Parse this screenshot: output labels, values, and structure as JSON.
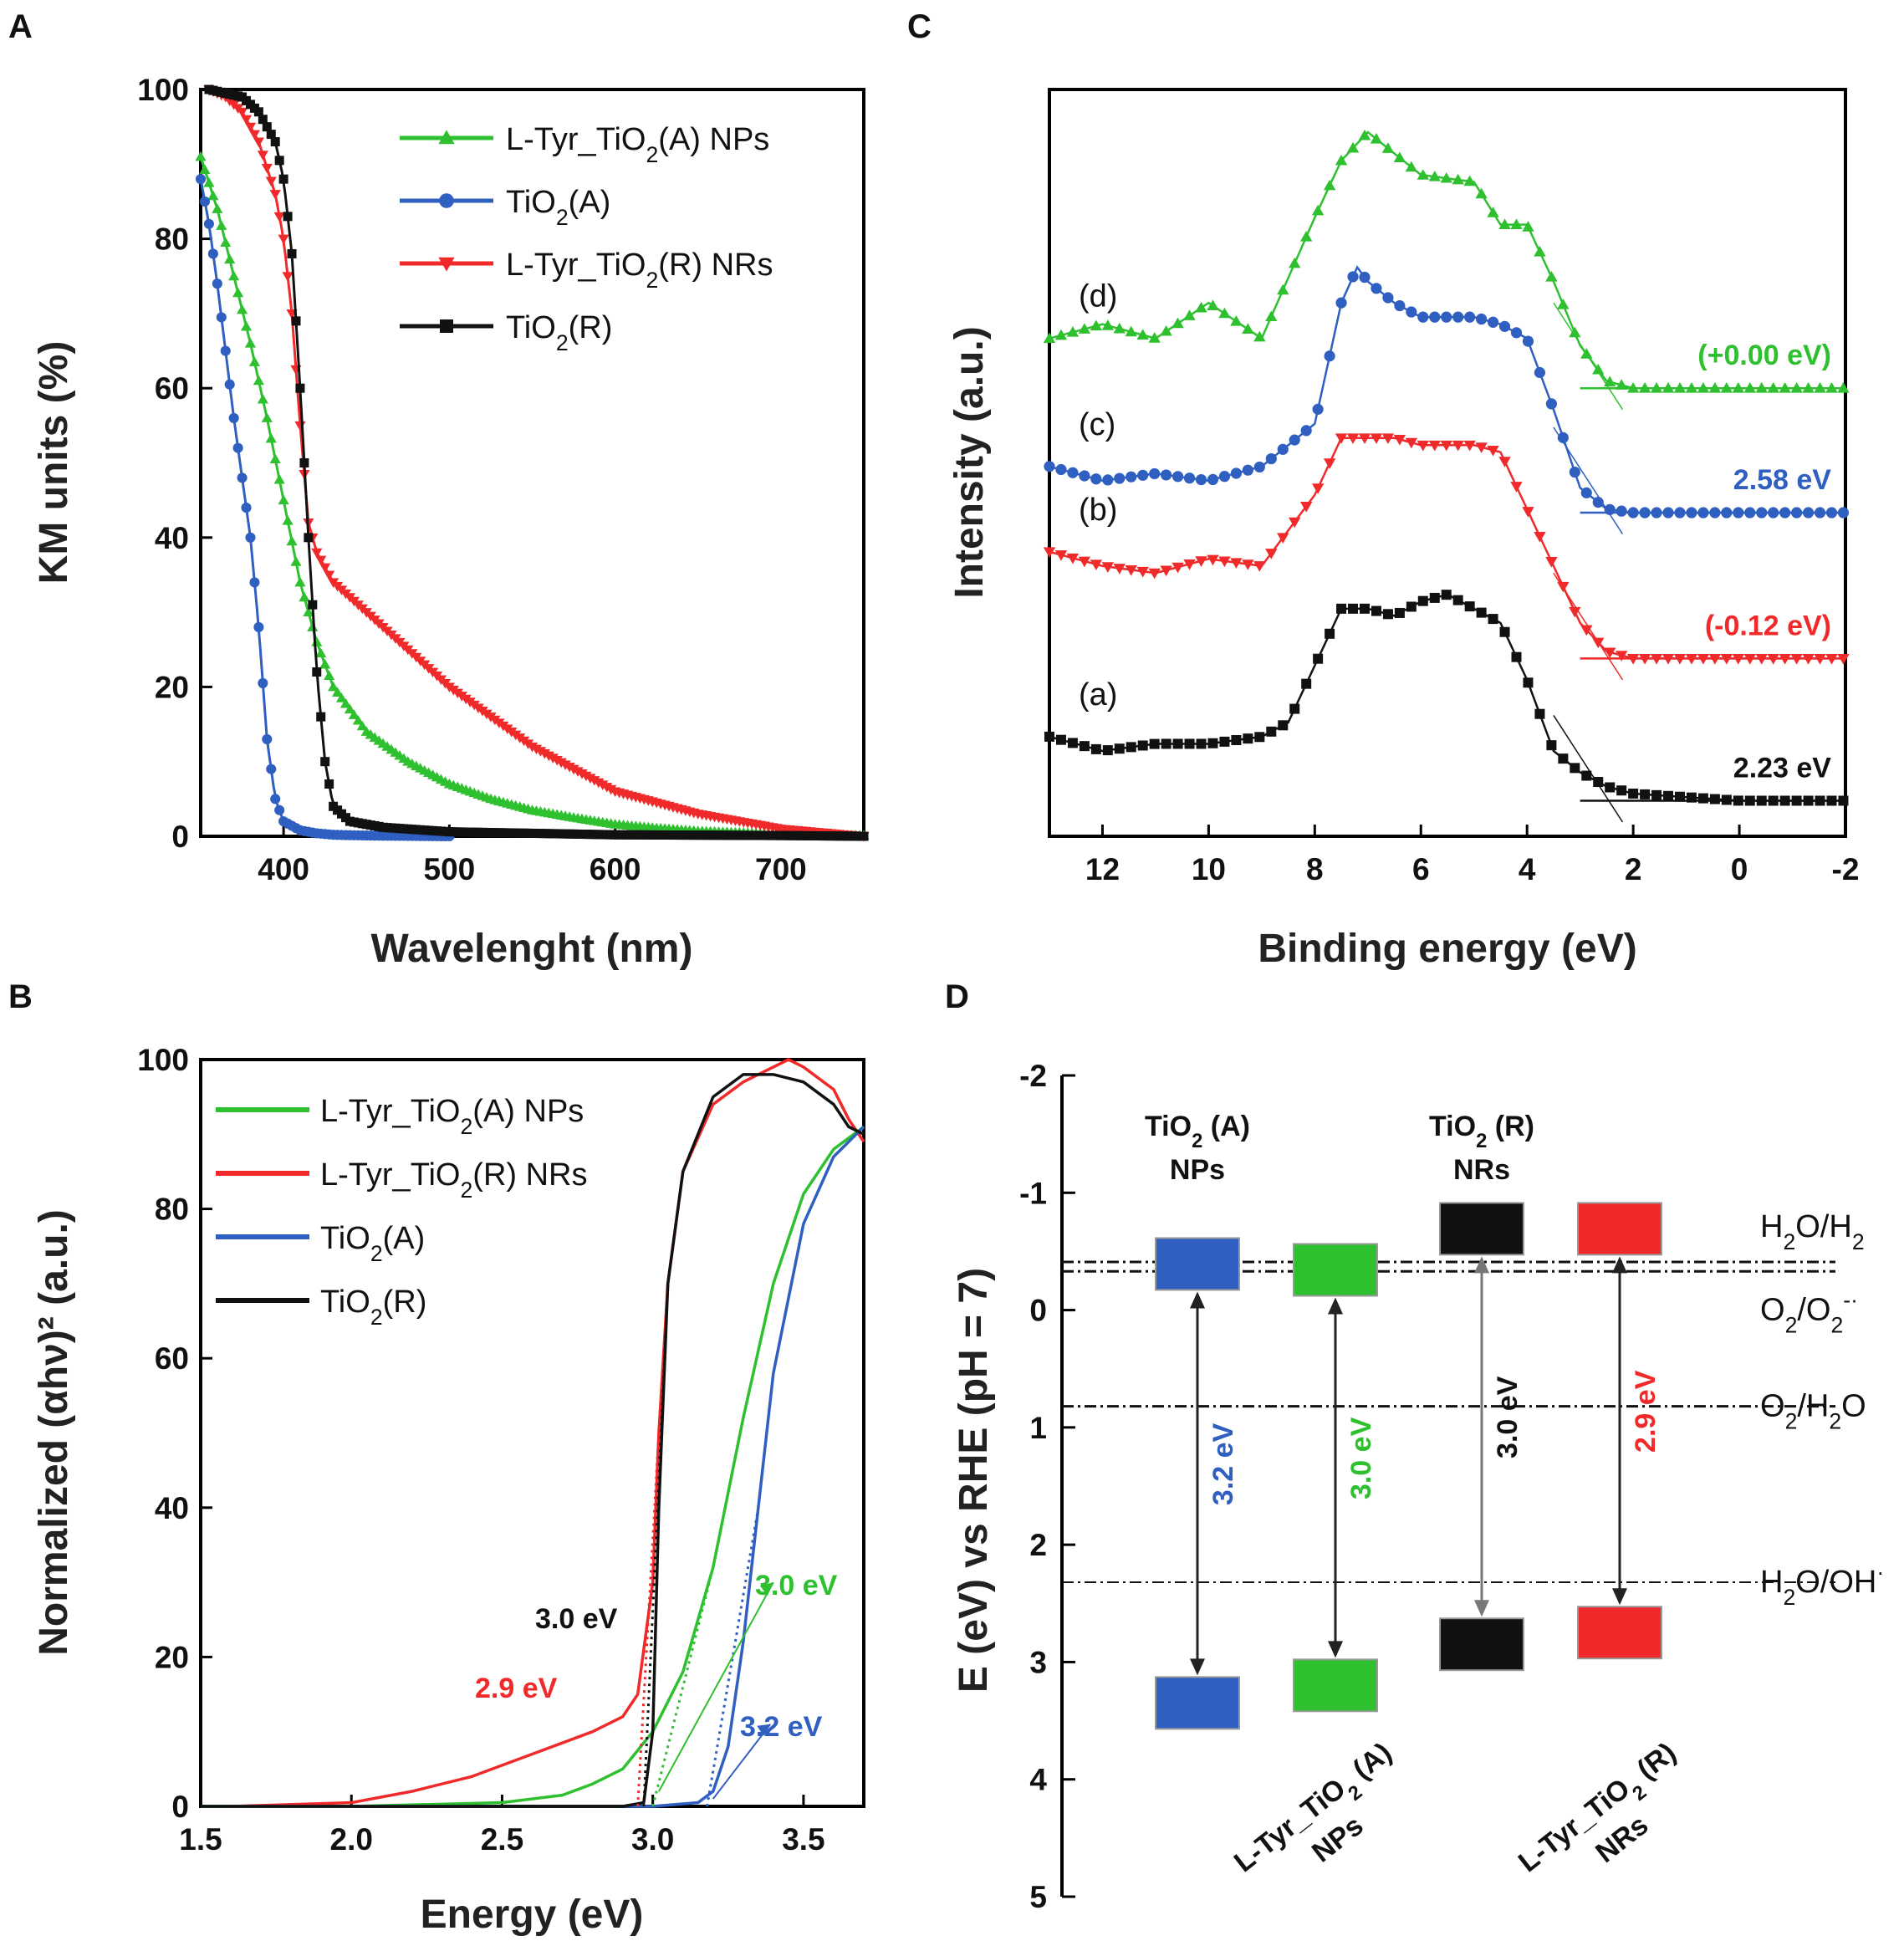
{
  "colors": {
    "green": "#2fc02f",
    "blue": "#2f5fc0",
    "red": "#f02a2a",
    "black": "#111111",
    "gray": "#777777"
  },
  "panels": {
    "A": {
      "label": "A"
    },
    "B": {
      "label": "B"
    },
    "C": {
      "label": "C"
    },
    "D": {
      "label": "D"
    }
  },
  "chart_data": [
    {
      "panel": "A",
      "type": "line",
      "xlabel": "Wavelenght (nm)",
      "ylabel": "KM units (%)",
      "xlim": [
        350,
        750
      ],
      "ylim": [
        0,
        100
      ],
      "xticks": [
        400,
        500,
        600,
        700
      ],
      "yticks": [
        0,
        20,
        40,
        60,
        80,
        100
      ],
      "legend_position": "top-right",
      "marker_hint": [
        "triangle",
        "circle",
        "triangle-down",
        "square"
      ],
      "series": [
        {
          "name": "L-Tyr_TiO2(A) NPs",
          "color": "green",
          "marker": "triangle",
          "x": [
            350,
            360,
            370,
            380,
            390,
            400,
            410,
            420,
            430,
            450,
            475,
            500,
            525,
            550,
            575,
            600,
            625,
            650,
            700,
            750
          ],
          "y": [
            91,
            84,
            75,
            66,
            56,
            45,
            34,
            26,
            20,
            14,
            10,
            7,
            5,
            3.5,
            2.5,
            1.6,
            1.1,
            0.7,
            0.3,
            0.1
          ]
        },
        {
          "name": "TiO2(A)",
          "color": "blue",
          "marker": "circle",
          "x": [
            350,
            355,
            360,
            365,
            370,
            375,
            380,
            385,
            390,
            395,
            400,
            410,
            420,
            430,
            450,
            500
          ],
          "y": [
            88,
            82,
            74,
            65,
            56,
            48,
            40,
            28,
            13,
            5,
            2,
            0.8,
            0.4,
            0.2,
            0.1,
            0
          ]
        },
        {
          "name": "L-Tyr_TiO2(R) NRs",
          "color": "red",
          "marker": "triangle-down",
          "x": [
            355,
            365,
            375,
            385,
            395,
            400,
            405,
            410,
            415,
            420,
            430,
            450,
            475,
            500,
            525,
            550,
            575,
            600,
            650,
            700,
            750
          ],
          "y": [
            100,
            99,
            97,
            93,
            86,
            80,
            70,
            55,
            42,
            38,
            34,
            30,
            25,
            20,
            16,
            12,
            9,
            6,
            3,
            1,
            0
          ]
        },
        {
          "name": "TiO2(R)",
          "color": "black",
          "marker": "square",
          "x": [
            355,
            365,
            375,
            385,
            395,
            400,
            405,
            410,
            415,
            420,
            425,
            430,
            440,
            460,
            500,
            550,
            600,
            700,
            750
          ],
          "y": [
            100,
            99.5,
            99,
            97,
            93,
            88,
            78,
            60,
            40,
            22,
            10,
            4,
            2,
            1.2,
            0.6,
            0.4,
            0.2,
            0.1,
            0
          ]
        }
      ]
    },
    {
      "panel": "B",
      "type": "line",
      "xlabel": "Energy (eV)",
      "ylabel": "Normalized (αhν)² (a.u.)",
      "xlim": [
        1.5,
        3.7
      ],
      "ylim": [
        0,
        100
      ],
      "xticks": [
        "1.5",
        "2.0",
        "2.5",
        "3.0",
        "3.5"
      ],
      "yticks": [
        0,
        20,
        40,
        60,
        80,
        100
      ],
      "legend_position": "top-left",
      "series": [
        {
          "name": "L-Tyr_TiO2(A) NPs",
          "color": "green",
          "x": [
            1.5,
            2.0,
            2.5,
            2.7,
            2.8,
            2.9,
            3.0,
            3.1,
            3.2,
            3.3,
            3.4,
            3.5,
            3.6,
            3.7
          ],
          "y": [
            0,
            0,
            0.5,
            1.5,
            3,
            5,
            10,
            18,
            32,
            52,
            70,
            82,
            88,
            91
          ]
        },
        {
          "name": "L-Tyr_TiO2(R) NRs",
          "color": "red",
          "x": [
            1.6,
            2.0,
            2.2,
            2.4,
            2.6,
            2.8,
            2.9,
            2.95,
            3.0,
            3.02,
            3.05,
            3.1,
            3.2,
            3.3,
            3.4,
            3.45,
            3.5,
            3.6,
            3.65,
            3.7
          ],
          "y": [
            0,
            0.5,
            2,
            4,
            7,
            10,
            12,
            15,
            30,
            50,
            70,
            85,
            94,
            97,
            99,
            100,
            99,
            96,
            92,
            89
          ]
        },
        {
          "name": "TiO2(A)",
          "color": "blue",
          "x": [
            1.5,
            3.0,
            3.15,
            3.2,
            3.25,
            3.3,
            3.35,
            3.4,
            3.5,
            3.6,
            3.7
          ],
          "y": [
            0,
            0,
            0.5,
            2,
            8,
            22,
            40,
            58,
            78,
            87,
            91
          ]
        },
        {
          "name": "TiO2(R)",
          "color": "black",
          "x": [
            1.5,
            2.9,
            2.97,
            3.0,
            3.02,
            3.05,
            3.1,
            3.2,
            3.3,
            3.4,
            3.5,
            3.6,
            3.65,
            3.7
          ],
          "y": [
            0,
            0,
            0.5,
            10,
            40,
            70,
            85,
            95,
            98,
            98,
            97,
            94,
            91,
            90
          ]
        }
      ],
      "annotations": [
        {
          "text": "3.0 eV",
          "color": "black"
        },
        {
          "text": "2.9 eV",
          "color": "red"
        },
        {
          "text": "3.0 eV",
          "color": "green"
        },
        {
          "text": "3.2 eV",
          "color": "blue"
        }
      ]
    },
    {
      "panel": "C",
      "type": "line",
      "xlabel": "Binding energy (eV)",
      "ylabel": "Intensity (a.u.)",
      "xlim": [
        13,
        -2
      ],
      "xticks": [
        12,
        10,
        8,
        6,
        4,
        2,
        0,
        -2
      ],
      "series": [
        {
          "name": "(d)",
          "color": "green",
          "offset_label": "(+0.00 eV)",
          "x": [
            13,
            12,
            11,
            10,
            9,
            8,
            7.5,
            7,
            6.5,
            6,
            5,
            4.5,
            4,
            3.5,
            3,
            2.5,
            2,
            1,
            0,
            -2
          ],
          "y": [
            7.0,
            7.2,
            7.0,
            7.5,
            7.0,
            8.7,
            9.5,
            9.9,
            9.6,
            9.3,
            9.2,
            8.6,
            8.6,
            7.8,
            6.9,
            6.4,
            6.3,
            6.3,
            6.3,
            6.3
          ]
        },
        {
          "name": "(c)",
          "color": "blue",
          "offset_label": "2.58 eV",
          "x": [
            13,
            12,
            11,
            10,
            9,
            8,
            7.5,
            7.2,
            7,
            6.5,
            6,
            5,
            4.5,
            4,
            3.5,
            3,
            2.5,
            2,
            1,
            0,
            -2
          ],
          "y": [
            5.2,
            5.0,
            5.1,
            5.0,
            5.2,
            5.8,
            7.5,
            8.0,
            7.8,
            7.5,
            7.3,
            7.3,
            7.2,
            7.0,
            6.0,
            4.9,
            4.6,
            4.55,
            4.55,
            4.55,
            4.55
          ]
        },
        {
          "name": "(b)",
          "color": "red",
          "offset_label": "(-0.12 eV)",
          "x": [
            13,
            12,
            11,
            10,
            9,
            8,
            7.5,
            7,
            6.5,
            6,
            5,
            4.5,
            4,
            3.5,
            3,
            2.5,
            2,
            1,
            0,
            -2
          ],
          "y": [
            4.0,
            3.8,
            3.7,
            3.9,
            3.8,
            4.8,
            5.6,
            5.6,
            5.6,
            5.5,
            5.5,
            5.4,
            4.6,
            3.8,
            3.0,
            2.6,
            2.5,
            2.5,
            2.5,
            2.5
          ]
        },
        {
          "name": "(a)",
          "color": "black",
          "offset_label": "2.23 eV",
          "x": [
            13,
            12,
            11,
            10,
            9,
            8.5,
            8,
            7.5,
            7,
            6.5,
            6,
            5.5,
            5,
            4.5,
            4,
            3.5,
            3,
            2.5,
            2,
            1,
            0,
            -2
          ],
          "y": [
            1.4,
            1.2,
            1.3,
            1.3,
            1.4,
            1.6,
            2.4,
            3.2,
            3.2,
            3.1,
            3.3,
            3.4,
            3.2,
            3.0,
            2.2,
            1.2,
            0.9,
            0.7,
            0.6,
            0.55,
            0.5,
            0.5
          ]
        }
      ]
    },
    {
      "panel": "D",
      "type": "bar",
      "ylabel": "E (eV) vs RHE (pH = 7)",
      "ylim": [
        -2,
        5
      ],
      "yticks": [
        "-2",
        "-1",
        "0",
        "1",
        "2",
        "3",
        "4",
        "5"
      ],
      "materials": [
        {
          "name_main": "TiO",
          "name_sub": "2",
          "name_rest": " (A)",
          "name_line2": "NPs",
          "label_position": "top",
          "color": "blue",
          "cb": -0.4,
          "vb": 2.8,
          "gap": "3.2 eV"
        },
        {
          "name_main": "L-Tyr_TiO",
          "name_sub": "2",
          "name_rest": " (A)",
          "name_line2": "NPs",
          "label_position": "bottom",
          "color": "green",
          "cb": -0.35,
          "vb": 2.65,
          "gap": "3.0 eV"
        },
        {
          "name_main": "TiO",
          "name_sub": "2",
          "name_rest": " (R)",
          "name_line2": "NRs",
          "label_position": "top",
          "color": "black",
          "cb": -0.7,
          "vb": 2.3,
          "gap": "3.0 eV"
        },
        {
          "name_main": "L-Tyr_TiO",
          "name_sub": "2",
          "name_rest": " (R)",
          "name_line2": "NRs",
          "label_position": "bottom",
          "color": "red",
          "cb": -0.7,
          "vb": 2.2,
          "gap": "2.9 eV"
        }
      ],
      "reference_levels": [
        {
          "label_main": "H",
          "label_sub": "2",
          "label_rest": "O/H",
          "label_sub2": "2",
          "label_sup": "",
          "value": -0.41
        },
        {
          "label_main": "O",
          "label_sub": "2",
          "label_rest": "/O",
          "label_sub2": "2",
          "label_sup": "-·",
          "value": -0.33
        },
        {
          "label_main": "O",
          "label_sub": "2",
          "label_rest": "/H",
          "label_sub2": "2",
          "label_tail": "O",
          "label_sup": "",
          "value": 0.82
        },
        {
          "label_main": "H",
          "label_sub": "2",
          "label_rest": "O/OH",
          "label_sub2": "",
          "label_sup": "·",
          "value": 2.32
        }
      ]
    }
  ]
}
